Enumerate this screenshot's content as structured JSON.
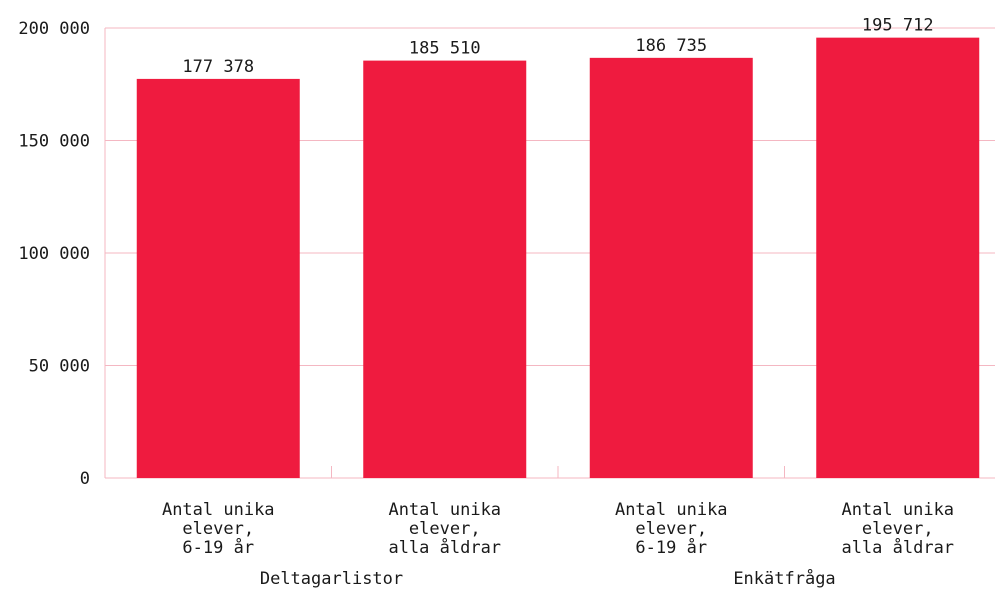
{
  "chart_data": {
    "type": "bar",
    "y_ticks": [
      "0",
      "50 000",
      "100 000",
      "150 000",
      "200 000"
    ],
    "y_tick_values": [
      0,
      50000,
      100000,
      150000,
      200000
    ],
    "ylim": [
      0,
      200000
    ],
    "grid": true,
    "colors": {
      "bar": "#ef1b3f",
      "grid": "#f4b7c2",
      "axis": "#f4b7c2"
    },
    "categories": [
      {
        "lines": [
          "Antal unika",
          "elever,",
          "6-19 år"
        ],
        "group": 0
      },
      {
        "lines": [
          "Antal unika",
          "elever,",
          "alla åldrar"
        ],
        "group": 0
      },
      {
        "lines": [
          "Antal unika",
          "elever,",
          "6-19 år"
        ],
        "group": 1
      },
      {
        "lines": [
          "Antal unika",
          "elever,",
          "alla åldrar"
        ],
        "group": 1
      }
    ],
    "values": [
      177378,
      185510,
      186735,
      195712
    ],
    "value_labels": [
      "177 378",
      "185 510",
      "186 735",
      "195 712"
    ],
    "groups": [
      "Deltagarlistor",
      "Enkätfråga"
    ]
  }
}
